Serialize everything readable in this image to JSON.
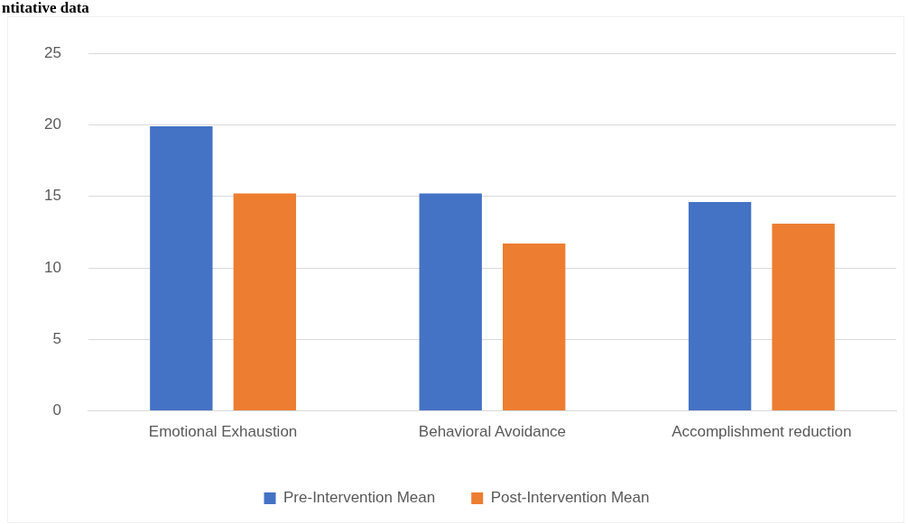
{
  "chart_data": {
    "type": "bar",
    "title": "ntitative data",
    "categories": [
      "Emotional Exhaustion",
      "Behavioral Avoidance",
      "Accomplishment reduction"
    ],
    "series": [
      {
        "name": "Pre-Intervention Mean",
        "color": "#4472c4",
        "values": [
          19.9,
          15.2,
          14.6
        ]
      },
      {
        "name": "Post-Intervention Mean",
        "color": "#ed7d31",
        "values": [
          15.2,
          11.7,
          13.1
        ]
      }
    ],
    "ylim": [
      0,
      25
    ],
    "yticks": [
      0,
      5,
      10,
      15,
      20,
      25
    ],
    "grid": "y",
    "legend": "bottom"
  }
}
